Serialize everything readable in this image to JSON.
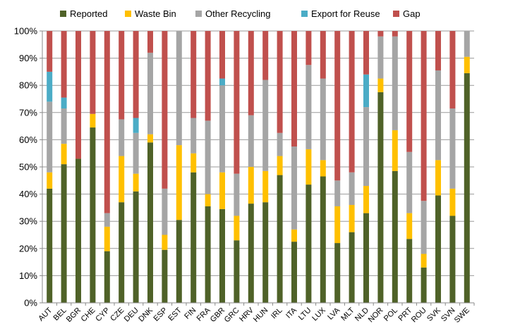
{
  "chart_data": {
    "type": "bar",
    "stacked": true,
    "normalized": true,
    "categories": [
      "AUT",
      "BEL",
      "BGR",
      "CHE",
      "CYP",
      "CZE",
      "DEU",
      "DNK",
      "ESP",
      "EST",
      "FIN",
      "FRA",
      "GBR",
      "GRC",
      "HRV",
      "HUN",
      "IRL",
      "ITA",
      "LTU",
      "LUX",
      "LVA",
      "MLT",
      "NLD",
      "NOR",
      "POL",
      "PRT",
      "ROU",
      "SVK",
      "SVN",
      "SWE"
    ],
    "series": [
      {
        "name": "Reported",
        "color": "#4f6228",
        "values": [
          42,
          51,
          53,
          64.5,
          19,
          37,
          41,
          59,
          19.5,
          30.5,
          48,
          35.5,
          34.5,
          23,
          36.5,
          37,
          47,
          22.5,
          43.5,
          46.5,
          22,
          26,
          33,
          77.5,
          48.5,
          23.5,
          13,
          39.5,
          32,
          84.5
        ]
      },
      {
        "name": "Waste Bin",
        "color": "#ffc000",
        "values": [
          6,
          7.5,
          0,
          5,
          9,
          17,
          6.5,
          3,
          5.5,
          27.5,
          7,
          4.5,
          13.5,
          9,
          13.5,
          11.5,
          7,
          4.5,
          13,
          6,
          13.5,
          10,
          10,
          5,
          15,
          9.5,
          5,
          13,
          10,
          6
        ]
      },
      {
        "name": "Other Recycling",
        "color": "#a5a5a5",
        "values": [
          26,
          13,
          0,
          0,
          5,
          13.5,
          15,
          30,
          17,
          42,
          13,
          27,
          32,
          15.5,
          19,
          33.5,
          8.5,
          30.5,
          31,
          30,
          9.5,
          12,
          29,
          15.5,
          34.5,
          22.5,
          19.5,
          33,
          29.5,
          9.5
        ]
      },
      {
        "name": "Export for Reuse",
        "color": "#4bacc6",
        "values": [
          11,
          4,
          0,
          0,
          0,
          0,
          5.5,
          0,
          0,
          0,
          0,
          0,
          2.5,
          0,
          0,
          0,
          0,
          0,
          0,
          0,
          0,
          0,
          12,
          0,
          0,
          0,
          0,
          0,
          0,
          0
        ]
      },
      {
        "name": "Gap",
        "color": "#c0504d",
        "values": [
          15,
          24.5,
          47,
          30.5,
          67,
          32.5,
          32,
          8,
          58,
          0,
          32,
          33,
          17.5,
          52.5,
          31,
          18,
          37.5,
          42.5,
          12.5,
          17.5,
          55,
          52,
          16,
          2,
          2,
          44.5,
          62.5,
          14.5,
          28.5,
          0
        ]
      }
    ],
    "yticks": [
      "0%",
      "10%",
      "20%",
      "30%",
      "40%",
      "50%",
      "60%",
      "70%",
      "80%",
      "90%",
      "100%"
    ],
    "ylim": [
      0,
      100
    ],
    "grid": true,
    "legend": "top"
  }
}
